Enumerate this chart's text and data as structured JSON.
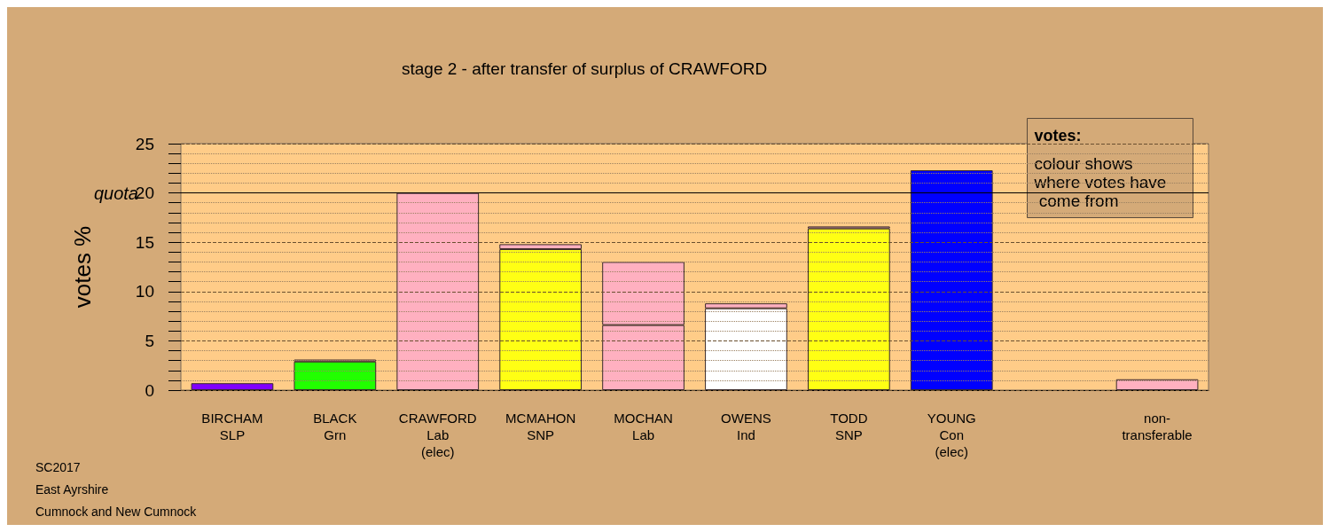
{
  "chart_data": {
    "type": "bar",
    "title": "stage 2 - after transfer of surplus of CRAWFORD",
    "ylabel": "votes %",
    "legend_title": "votes:",
    "annotations": [
      "colour shows where votes have come from",
      "SC2017",
      "East Ayrshire",
      "Cumnock and New Cumnock"
    ],
    "categories": [
      "BIRCHAM\nSLP",
      "BLACK\nGrn",
      "CRAWFORD\nLab\n(elec)",
      "MCMAHON\nSNP",
      "MOCHAN\nLab",
      "OWENS\nInd",
      "TODD\nSNP",
      "YOUNG\nCon\n(elec)",
      null,
      "non-\ntransferable"
    ],
    "stacked": true,
    "series": [
      {
        "colors": [
          "#8000ff",
          "#22ff00",
          "#ffb0c0",
          "#ffff14",
          "#ffb0c0",
          "#ffffff",
          "#ffff14",
          "#0000ff",
          "#ffb0c0",
          "#ffb0c0"
        ],
        "values": [
          0.7,
          2.9,
          20,
          14.3,
          6.6,
          8.3,
          16.4,
          22.3,
          null,
          null
        ]
      },
      {
        "color": "#ffb0c0",
        "values": [
          null,
          0.2,
          null,
          0.5,
          6.4,
          0.5,
          0.2,
          null,
          null,
          1.1
        ]
      }
    ],
    "ylim": [
      0,
      25
    ],
    "yticks": [
      0,
      {
        "value": 1,
        "label": null
      },
      {
        "value": 2,
        "label": null
      },
      {
        "value": 3,
        "label": null
      },
      {
        "value": 4,
        "label": null
      },
      5,
      {
        "value": 6,
        "label": null
      },
      {
        "value": 7,
        "label": null
      },
      {
        "value": 8,
        "label": null
      },
      {
        "value": 9,
        "label": null
      },
      10,
      {
        "value": 11,
        "label": null
      },
      {
        "value": 12,
        "label": null
      },
      {
        "value": 13,
        "label": null
      },
      {
        "value": 14,
        "label": null
      },
      15,
      {
        "value": 16,
        "label": null
      },
      {
        "value": 17,
        "label": null
      },
      {
        "value": 18,
        "label": null
      },
      {
        "value": 19,
        "label": null
      },
      20,
      {
        "value": 21,
        "label": null
      },
      {
        "value": 22,
        "label": null
      },
      {
        "value": 23,
        "label": null
      },
      {
        "value": 24,
        "label": null
      },
      25
    ],
    "grid": "y",
    "ref_lines": [
      {
        "axis": "y",
        "value": 20,
        "label": "quota",
        "color": "#000000",
        "line_style": "solid"
      }
    ]
  }
}
